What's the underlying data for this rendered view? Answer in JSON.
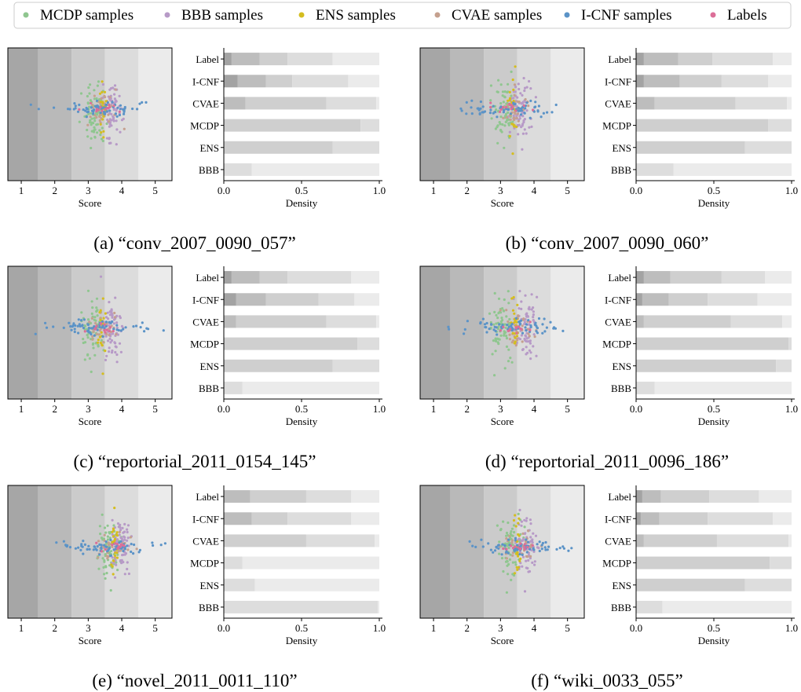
{
  "legend": {
    "entries": [
      {
        "label": "MCDP samples",
        "color": "#8fc68f"
      },
      {
        "label": "BBB samples",
        "color": "#b79ac7"
      },
      {
        "label": "ENS samples",
        "color": "#d4bd1f"
      },
      {
        "label": "CVAE samples",
        "color": "#c5a08e"
      },
      {
        "label": "I-CNF samples",
        "color": "#5b93c7"
      },
      {
        "label": "Labels",
        "color": "#dc6e98"
      }
    ],
    "placement": "top"
  },
  "chart_data": [
    {
      "caption": "(a) “conv_2007_0090_057”",
      "scatter": {
        "type": "scatter",
        "xlabel": "Score",
        "xlim": [
          0.6,
          5.5
        ],
        "xticks": [
          1,
          2,
          3,
          4,
          5
        ],
        "shading_bands": [
          1.5,
          2.5,
          3.5,
          4.5
        ],
        "series_centers": {
          "MCDP": 3.2,
          "BBB": 3.75,
          "ENS": 3.45,
          "CVAE": 3.5,
          "I-CNF": 3.4,
          "Labels": 3.4
        }
      },
      "bars": {
        "type": "bar",
        "orientation": "horizontal",
        "xlabel": "Density",
        "xlim": [
          0,
          1
        ],
        "xticks": [
          "0.0",
          "0.5",
          "1.0"
        ],
        "categories": [
          "Label",
          "I-CNF",
          "CVAE",
          "MCDP",
          "ENS",
          "BBB"
        ],
        "cumulative": [
          [
            0.05,
            0.23,
            0.41,
            0.7,
            1.0
          ],
          [
            0.09,
            0.27,
            0.44,
            0.8,
            1.0
          ],
          [
            0.0,
            0.14,
            0.66,
            0.98,
            1.0
          ],
          [
            0.0,
            0.0,
            0.88,
            1.0,
            1.0
          ],
          [
            0.0,
            0.0,
            0.7,
            1.0,
            1.0
          ],
          [
            0.0,
            0.0,
            0.0,
            0.18,
            1.0
          ]
        ]
      }
    },
    {
      "caption": "(b) “conv_2007_0090_060”",
      "scatter": {
        "type": "scatter",
        "xlabel": "Score",
        "xlim": [
          0.6,
          5.5
        ],
        "xticks": [
          1,
          2,
          3,
          4,
          5
        ],
        "shading_bands": [
          1.5,
          2.5,
          3.5,
          4.5
        ],
        "series_centers": {
          "MCDP": 3.1,
          "BBB": 3.6,
          "ENS": 3.35,
          "CVAE": 3.4,
          "I-CNF": 3.3,
          "Labels": 3.3
        }
      },
      "bars": {
        "type": "bar",
        "orientation": "horizontal",
        "xlabel": "Density",
        "xlim": [
          0,
          1
        ],
        "xticks": [
          "0.0",
          "0.5",
          "1.0"
        ],
        "categories": [
          "Label",
          "I-CNF",
          "CVAE",
          "MCDP",
          "ENS",
          "BBB"
        ],
        "cumulative": [
          [
            0.05,
            0.27,
            0.49,
            0.88,
            1.0
          ],
          [
            0.05,
            0.28,
            0.55,
            0.85,
            1.0
          ],
          [
            0.0,
            0.12,
            0.64,
            0.97,
            1.0
          ],
          [
            0.0,
            0.0,
            0.85,
            1.0,
            1.0
          ],
          [
            0.0,
            0.0,
            0.7,
            1.0,
            1.0
          ],
          [
            0.0,
            0.0,
            0.0,
            0.24,
            1.0
          ]
        ]
      }
    },
    {
      "caption": "(c) “reportorial_2011_0154_145”",
      "scatter": {
        "type": "scatter",
        "xlabel": "Score",
        "xlim": [
          0.6,
          5.5
        ],
        "xticks": [
          1,
          2,
          3,
          4,
          5
        ],
        "shading_bands": [
          1.5,
          2.5,
          3.5,
          4.5
        ],
        "series_centers": {
          "MCDP": 3.15,
          "BBB": 3.7,
          "ENS": 3.4,
          "CVAE": 3.45,
          "I-CNF": 3.3,
          "Labels": 3.4
        }
      },
      "bars": {
        "type": "bar",
        "orientation": "horizontal",
        "xlabel": "Density",
        "xlim": [
          0,
          1
        ],
        "xticks": [
          "0.0",
          "0.5",
          "1.0"
        ],
        "categories": [
          "Label",
          "I-CNF",
          "CVAE",
          "MCDP",
          "ENS",
          "BBB"
        ],
        "cumulative": [
          [
            0.05,
            0.23,
            0.41,
            0.82,
            1.0
          ],
          [
            0.08,
            0.27,
            0.61,
            0.84,
            1.0
          ],
          [
            0.0,
            0.08,
            0.66,
            0.98,
            1.0
          ],
          [
            0.0,
            0.0,
            0.86,
            1.0,
            1.0
          ],
          [
            0.0,
            0.0,
            0.7,
            1.0,
            1.0
          ],
          [
            0.0,
            0.0,
            0.0,
            0.12,
            1.0
          ]
        ]
      }
    },
    {
      "caption": "(d) “reportorial_2011_0096_186”",
      "scatter": {
        "type": "scatter",
        "xlabel": "Score",
        "xlim": [
          0.6,
          5.5
        ],
        "xticks": [
          1,
          2,
          3,
          4,
          5
        ],
        "shading_bands": [
          1.5,
          2.5,
          3.5,
          4.5
        ],
        "series_centers": {
          "MCDP": 3.0,
          "BBB": 3.8,
          "ENS": 3.45,
          "CVAE": 3.5,
          "I-CNF": 3.5,
          "Labels": 3.4
        }
      },
      "bars": {
        "type": "bar",
        "orientation": "horizontal",
        "xlabel": "Density",
        "xlim": [
          0,
          1
        ],
        "xticks": [
          "0.0",
          "0.5",
          "1.0"
        ],
        "categories": [
          "Label",
          "I-CNF",
          "CVAE",
          "MCDP",
          "ENS",
          "BBB"
        ],
        "cumulative": [
          [
            0.05,
            0.22,
            0.55,
            0.83,
            1.0
          ],
          [
            0.04,
            0.21,
            0.46,
            0.78,
            1.0
          ],
          [
            0.0,
            0.05,
            0.61,
            0.94,
            1.0
          ],
          [
            0.0,
            0.0,
            0.98,
            1.0,
            1.0
          ],
          [
            0.0,
            0.0,
            0.9,
            1.0,
            1.0
          ],
          [
            0.0,
            0.0,
            0.0,
            0.12,
            1.0
          ]
        ]
      }
    },
    {
      "caption": "(e) “novel_2011_0011_110”",
      "scatter": {
        "type": "scatter",
        "xlabel": "Score",
        "xlim": [
          0.6,
          5.5
        ],
        "xticks": [
          1,
          2,
          3,
          4,
          5
        ],
        "shading_bands": [
          1.5,
          2.5,
          3.5,
          4.5
        ],
        "series_centers": {
          "MCDP": 3.6,
          "BBB": 4.0,
          "ENS": 3.8,
          "CVAE": 3.8,
          "I-CNF": 3.6,
          "Labels": 3.8
        }
      },
      "bars": {
        "type": "bar",
        "orientation": "horizontal",
        "xlabel": "Density",
        "xlim": [
          0,
          1
        ],
        "xticks": [
          "0.0",
          "0.5",
          "1.0"
        ],
        "categories": [
          "Label",
          "I-CNF",
          "CVAE",
          "MCDP",
          "ENS",
          "BBB"
        ],
        "cumulative": [
          [
            0.0,
            0.17,
            0.53,
            0.82,
            1.0
          ],
          [
            0.0,
            0.18,
            0.41,
            0.82,
            1.0
          ],
          [
            0.0,
            0.0,
            0.53,
            0.97,
            1.0
          ],
          [
            0.0,
            0.0,
            0.0,
            0.12,
            1.0
          ],
          [
            0.0,
            0.0,
            0.0,
            0.2,
            1.0
          ],
          [
            0.0,
            0.0,
            0.0,
            0.99,
            1.0
          ]
        ]
      }
    },
    {
      "caption": "(f) “wiki_0033_055”",
      "scatter": {
        "type": "scatter",
        "xlabel": "Score",
        "xlim": [
          0.6,
          5.5
        ],
        "xticks": [
          1,
          2,
          3,
          4,
          5
        ],
        "shading_bands": [
          1.5,
          2.5,
          3.5,
          4.5
        ],
        "series_centers": {
          "MCDP": 3.3,
          "BBB": 3.8,
          "ENS": 3.5,
          "CVAE": 3.6,
          "I-CNF": 3.6,
          "Labels": 3.6
        }
      },
      "bars": {
        "type": "bar",
        "orientation": "horizontal",
        "xlabel": "Density",
        "xlim": [
          0,
          1
        ],
        "xticks": [
          "0.0",
          "0.5",
          "1.0"
        ],
        "categories": [
          "Label",
          "I-CNF",
          "CVAE",
          "MCDP",
          "ENS",
          "BBB"
        ],
        "cumulative": [
          [
            0.04,
            0.16,
            0.47,
            0.79,
            1.0
          ],
          [
            0.03,
            0.15,
            0.46,
            0.88,
            1.0
          ],
          [
            0.0,
            0.05,
            0.52,
            0.98,
            1.0
          ],
          [
            0.0,
            0.0,
            0.86,
            1.0,
            1.0
          ],
          [
            0.0,
            0.0,
            0.7,
            1.0,
            1.0
          ],
          [
            0.0,
            0.0,
            0.0,
            0.17,
            1.0
          ]
        ]
      }
    }
  ]
}
